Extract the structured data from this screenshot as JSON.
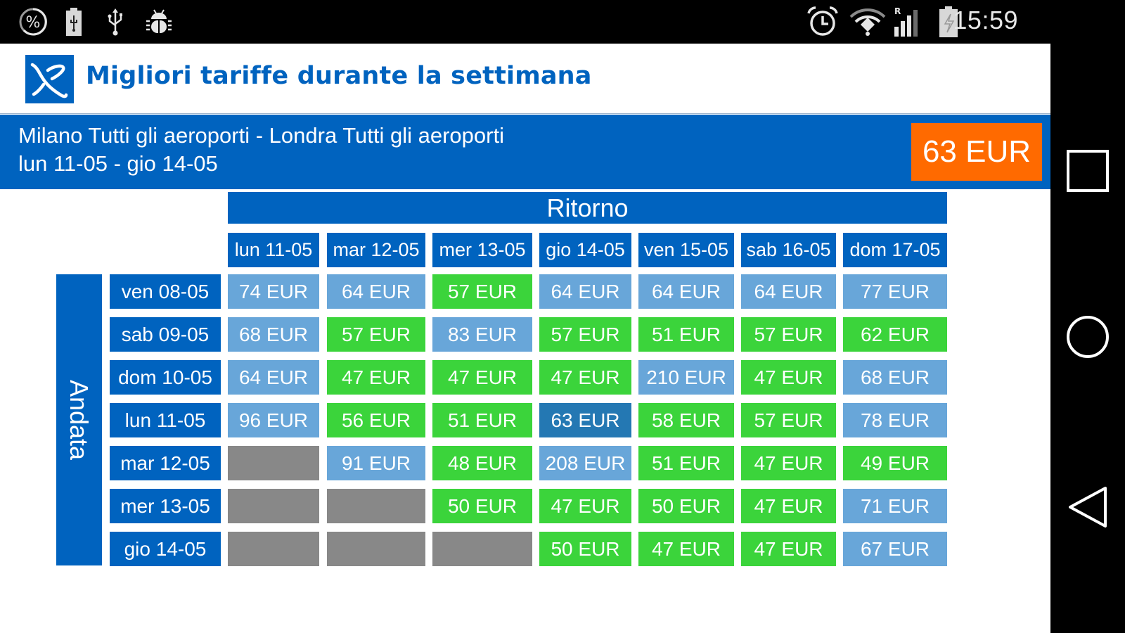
{
  "status_bar": {
    "left_icons": [
      "percent-circle-icon",
      "battery-usb-icon",
      "usb-icon",
      "android-debug-icon"
    ],
    "right_icons": [
      "alarm-icon",
      "wifi-icon",
      "signal-roaming-icon",
      "battery-charging-icon"
    ],
    "roaming_label": "R",
    "time": "15:59"
  },
  "action_bar": {
    "logo": "app-logo-icon",
    "title": "Migliori tariffe durante la settimana"
  },
  "route": {
    "line1": "Milano Tutti gli aeroporti - Londra Tutti gli aeroporti",
    "line2": "lun 11-05 - gio 14-05",
    "best_price": "63 EUR"
  },
  "grid": {
    "return_label": "Ritorno",
    "outbound_label": "Andata",
    "columns": [
      "lun 11-05",
      "mar 12-05",
      "mer 13-05",
      "gio 14-05",
      "ven 15-05",
      "sab 16-05",
      "dom 17-05"
    ],
    "rows": [
      {
        "label": "ven 08-05",
        "cells": [
          {
            "v": "74 EUR",
            "c": "light"
          },
          {
            "v": "64 EUR",
            "c": "light"
          },
          {
            "v": "57 EUR",
            "c": "green"
          },
          {
            "v": "64 EUR",
            "c": "light"
          },
          {
            "v": "64 EUR",
            "c": "light"
          },
          {
            "v": "64 EUR",
            "c": "light"
          },
          {
            "v": "77 EUR",
            "c": "light"
          }
        ]
      },
      {
        "label": "sab 09-05",
        "cells": [
          {
            "v": "68 EUR",
            "c": "light"
          },
          {
            "v": "57 EUR",
            "c": "green"
          },
          {
            "v": "83 EUR",
            "c": "light"
          },
          {
            "v": "57 EUR",
            "c": "green"
          },
          {
            "v": "51 EUR",
            "c": "green"
          },
          {
            "v": "57 EUR",
            "c": "green"
          },
          {
            "v": "62 EUR",
            "c": "green"
          }
        ]
      },
      {
        "label": "dom 10-05",
        "cells": [
          {
            "v": "64 EUR",
            "c": "light"
          },
          {
            "v": "47 EUR",
            "c": "green"
          },
          {
            "v": "47 EUR",
            "c": "green"
          },
          {
            "v": "47 EUR",
            "c": "green"
          },
          {
            "v": "210 EUR",
            "c": "light"
          },
          {
            "v": "47 EUR",
            "c": "green"
          },
          {
            "v": "68 EUR",
            "c": "light"
          }
        ]
      },
      {
        "label": "lun 11-05",
        "cells": [
          {
            "v": "96 EUR",
            "c": "light"
          },
          {
            "v": "56 EUR",
            "c": "green"
          },
          {
            "v": "51 EUR",
            "c": "green"
          },
          {
            "v": "63 EUR",
            "c": "sel"
          },
          {
            "v": "58 EUR",
            "c": "green"
          },
          {
            "v": "57 EUR",
            "c": "green"
          },
          {
            "v": "78 EUR",
            "c": "light"
          }
        ]
      },
      {
        "label": "mar 12-05",
        "cells": [
          {
            "v": "",
            "c": "none"
          },
          {
            "v": "91 EUR",
            "c": "light"
          },
          {
            "v": "48 EUR",
            "c": "green"
          },
          {
            "v": "208 EUR",
            "c": "light"
          },
          {
            "v": "51 EUR",
            "c": "green"
          },
          {
            "v": "47 EUR",
            "c": "green"
          },
          {
            "v": "49 EUR",
            "c": "green"
          }
        ]
      },
      {
        "label": "mer 13-05",
        "cells": [
          {
            "v": "",
            "c": "none"
          },
          {
            "v": "",
            "c": "none"
          },
          {
            "v": "50 EUR",
            "c": "green"
          },
          {
            "v": "47 EUR",
            "c": "green"
          },
          {
            "v": "50 EUR",
            "c": "green"
          },
          {
            "v": "47 EUR",
            "c": "green"
          },
          {
            "v": "71 EUR",
            "c": "light"
          }
        ]
      },
      {
        "label": "gio 14-05",
        "cells": [
          {
            "v": "",
            "c": "none"
          },
          {
            "v": "",
            "c": "none"
          },
          {
            "v": "",
            "c": "none"
          },
          {
            "v": "50 EUR",
            "c": "green"
          },
          {
            "v": "47 EUR",
            "c": "green"
          },
          {
            "v": "47 EUR",
            "c": "green"
          },
          {
            "v": "67 EUR",
            "c": "light"
          }
        ]
      }
    ]
  },
  "nav_bar": {
    "buttons": [
      "recents-square-icon",
      "home-circle-icon",
      "back-triangle-icon"
    ]
  },
  "colors": {
    "brand_blue": "#0063bf",
    "best_price_orange": "#ff6a00",
    "cheap_green": "#3bd43b",
    "regular_light_blue": "#68a6d9",
    "selected_blue": "#2478b3",
    "unavailable_gray": "#888888"
  }
}
